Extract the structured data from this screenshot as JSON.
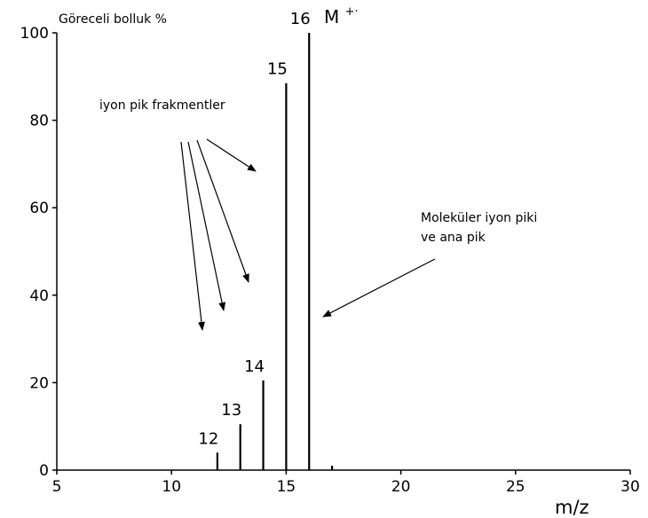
{
  "chart_data": {
    "type": "bar",
    "title": "",
    "ylabel": "Göreceli bolluk %",
    "xlabel": "m/z",
    "xlim": [
      5,
      30
    ],
    "ylim": [
      0,
      100
    ],
    "x_ticks": [
      "5",
      "10",
      "15",
      "20",
      "25",
      "30"
    ],
    "y_ticks": [
      "0",
      "20",
      "40",
      "60",
      "80",
      "100"
    ],
    "peaks": [
      {
        "mz": 12,
        "value": 4,
        "label": "12"
      },
      {
        "mz": 13,
        "value": 10.5,
        "label": "13"
      },
      {
        "mz": 14,
        "value": 20.5,
        "label": "14"
      },
      {
        "mz": 15,
        "value": 88.5,
        "label": "15"
      },
      {
        "mz": 16,
        "value": 100,
        "label": "16"
      },
      {
        "mz": 17,
        "value": 1,
        "label": ""
      }
    ],
    "molecular_ion_label": "M",
    "molecular_ion_superscript": "+·",
    "annotations": [
      {
        "text": "iyon pik frakmentler"
      },
      {
        "text_lines": [
          "Moleküler iyon piki",
          "ve ana pik"
        ]
      }
    ],
    "grid": false
  }
}
